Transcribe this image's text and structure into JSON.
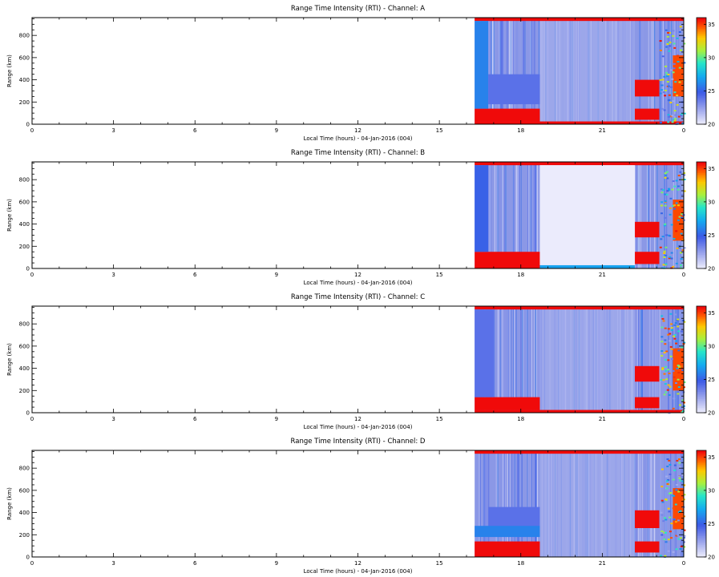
{
  "chart_data": [
    {
      "type": "heatmap",
      "title": "Range Time Intensity (RTI) - Channel: A",
      "xlabel": "Local Time (hours) - 04-Jan-2016 (004)",
      "ylabel": "Range (km)",
      "xlim": [
        0,
        24
      ],
      "ylim": [
        0,
        960
      ],
      "xticks": [
        "0",
        "3",
        "6",
        "9",
        "12",
        "15",
        "18",
        "21",
        "0"
      ],
      "yticks": [
        "0",
        "200",
        "400",
        "600",
        "800"
      ],
      "colorbar": {
        "min": 20,
        "max": 36,
        "ticks": [
          "20",
          "25",
          "30",
          "35"
        ]
      },
      "data_start_hour": 16.3,
      "features": [
        {
          "x": [
            16.3,
            24
          ],
          "y": [
            930,
            960
          ],
          "level": 36
        },
        {
          "x": [
            16.3,
            24
          ],
          "y": [
            0,
            25
          ],
          "level": 36
        },
        {
          "x": [
            16.3,
            18.7
          ],
          "y": [
            25,
            140
          ],
          "level": 36
        },
        {
          "x": [
            22.2,
            23.1
          ],
          "y": [
            250,
            400
          ],
          "level": 36
        },
        {
          "x": [
            22.2,
            23.1
          ],
          "y": [
            40,
            140
          ],
          "level": 36
        },
        {
          "x": [
            23.6,
            24
          ],
          "y": [
            250,
            620
          ],
          "level": 35
        },
        {
          "x": [
            16.3,
            16.8
          ],
          "y": [
            140,
            930
          ],
          "level": 26
        },
        {
          "x": [
            16.8,
            18.7
          ],
          "y": [
            180,
            450
          ],
          "level": 24
        }
      ]
    },
    {
      "type": "heatmap",
      "title": "Range Time Intensity (RTI) - Channel: B",
      "xlabel": "Local Time (hours) - 04-Jan-2016 (004)",
      "ylabel": "Range (km)",
      "xlim": [
        0,
        24
      ],
      "ylim": [
        0,
        960
      ],
      "xticks": [
        "0",
        "3",
        "6",
        "9",
        "12",
        "15",
        "18",
        "21",
        "0"
      ],
      "yticks": [
        "0",
        "200",
        "400",
        "600",
        "800"
      ],
      "colorbar": {
        "min": 20,
        "max": 36,
        "ticks": [
          "20",
          "25",
          "30",
          "35"
        ]
      },
      "data_start_hour": 16.3,
      "features": [
        {
          "x": [
            16.3,
            24
          ],
          "y": [
            930,
            960
          ],
          "level": 36
        },
        {
          "x": [
            16.3,
            18.7
          ],
          "y": [
            0,
            150
          ],
          "level": 36
        },
        {
          "x": [
            18.7,
            22.2
          ],
          "y": [
            0,
            30
          ],
          "level": 27
        },
        {
          "x": [
            22.2,
            23.1
          ],
          "y": [
            280,
            420
          ],
          "level": 36
        },
        {
          "x": [
            22.2,
            23.1
          ],
          "y": [
            40,
            150
          ],
          "level": 36
        },
        {
          "x": [
            23.6,
            24
          ],
          "y": [
            250,
            620
          ],
          "level": 35
        },
        {
          "x": [
            16.3,
            16.8
          ],
          "y": [
            150,
            930
          ],
          "level": 25
        },
        {
          "x": [
            18.7,
            22.2
          ],
          "y": [
            30,
            930
          ],
          "level": 20
        }
      ]
    },
    {
      "type": "heatmap",
      "title": "Range Time Intensity (RTI) - Channel: C",
      "xlabel": "Local Time (hours) - 04-Jan-2016 (004)",
      "ylabel": "Range (km)",
      "xlim": [
        0,
        24
      ],
      "ylim": [
        0,
        960
      ],
      "xticks": [
        "0",
        "3",
        "6",
        "9",
        "12",
        "15",
        "18",
        "21",
        "0"
      ],
      "yticks": [
        "0",
        "200",
        "400",
        "600",
        "800"
      ],
      "colorbar": {
        "min": 20,
        "max": 36,
        "ticks": [
          "20",
          "25",
          "30",
          "35"
        ]
      },
      "data_start_hour": 16.3,
      "features": [
        {
          "x": [
            16.3,
            24
          ],
          "y": [
            930,
            960
          ],
          "level": 36
        },
        {
          "x": [
            16.3,
            24
          ],
          "y": [
            0,
            25
          ],
          "level": 36
        },
        {
          "x": [
            16.3,
            18.7
          ],
          "y": [
            25,
            140
          ],
          "level": 36
        },
        {
          "x": [
            22.2,
            23.1
          ],
          "y": [
            280,
            420
          ],
          "level": 36
        },
        {
          "x": [
            22.2,
            23.1
          ],
          "y": [
            40,
            140
          ],
          "level": 36
        },
        {
          "x": [
            23.6,
            24
          ],
          "y": [
            200,
            580
          ],
          "level": 35
        },
        {
          "x": [
            16.3,
            17.0
          ],
          "y": [
            140,
            930
          ],
          "level": 24
        }
      ]
    },
    {
      "type": "heatmap",
      "title": "Range Time Intensity (RTI) - Channel: D",
      "xlabel": "Local Time (hours) - 04-Jan-2016 (004)",
      "ylabel": "Range (km)",
      "xlim": [
        0,
        24
      ],
      "ylim": [
        0,
        960
      ],
      "xticks": [
        "0",
        "3",
        "6",
        "9",
        "12",
        "15",
        "18",
        "21",
        "0"
      ],
      "yticks": [
        "0",
        "200",
        "400",
        "600",
        "800"
      ],
      "colorbar": {
        "min": 20,
        "max": 36,
        "ticks": [
          "20",
          "25",
          "30",
          "35"
        ]
      },
      "data_start_hour": 16.3,
      "features": [
        {
          "x": [
            16.3,
            24
          ],
          "y": [
            930,
            960
          ],
          "level": 36
        },
        {
          "x": [
            16.3,
            18.7
          ],
          "y": [
            0,
            140
          ],
          "level": 36
        },
        {
          "x": [
            22.2,
            23.1
          ],
          "y": [
            260,
            420
          ],
          "level": 36
        },
        {
          "x": [
            22.2,
            23.1
          ],
          "y": [
            40,
            140
          ],
          "level": 36
        },
        {
          "x": [
            23.6,
            24
          ],
          "y": [
            250,
            620
          ],
          "level": 35
        },
        {
          "x": [
            16.8,
            18.7
          ],
          "y": [
            180,
            450
          ],
          "level": 24
        },
        {
          "x": [
            16.3,
            18.7
          ],
          "y": [
            180,
            280
          ],
          "level": 26
        }
      ]
    }
  ],
  "colors": {
    "background_level": "#8b98e6",
    "quiet_level": "#dfe2fa",
    "saturated": "#ff1010"
  }
}
